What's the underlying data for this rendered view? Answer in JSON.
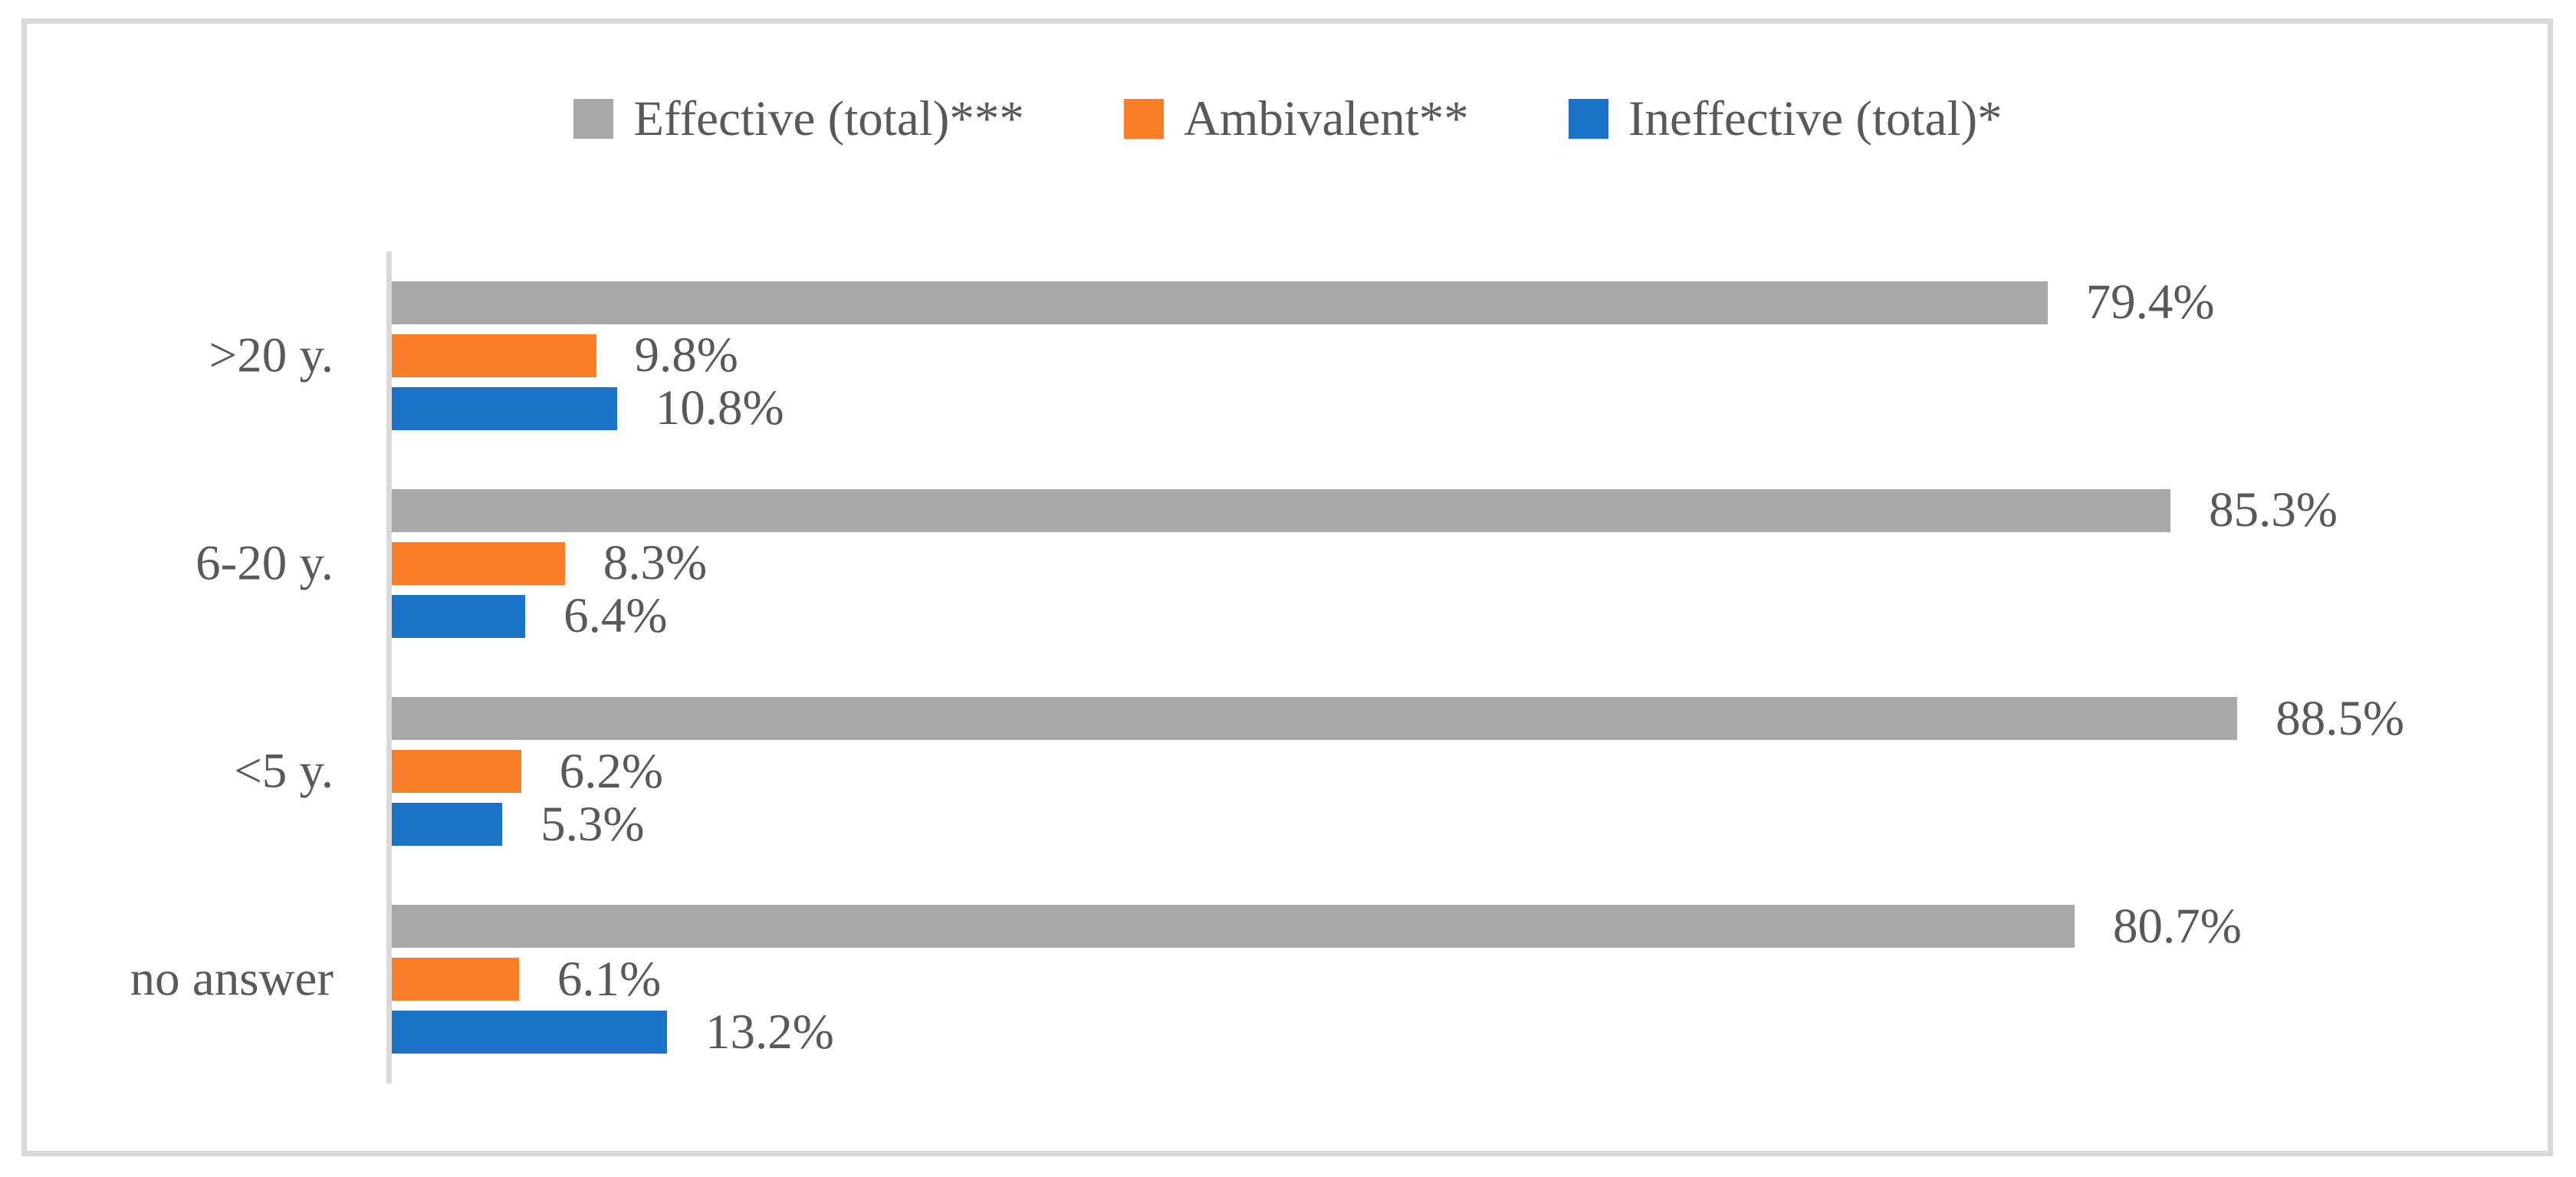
{
  "figure": {
    "background_color": "#FFFFFF",
    "border_color": "#D9D9D9",
    "text_color": "#595959",
    "axis_line_color": "#D9D9D9"
  },
  "chart_data": {
    "type": "bar",
    "orientation": "horizontal",
    "title": "",
    "xlabel": "",
    "ylabel": "",
    "xlim": [
      0,
      100
    ],
    "gridlines": false,
    "legend_position": "top",
    "data_labels_position": "outside-end",
    "categories": [
      ">20 y.",
      "6-20 y.",
      "<5 y.",
      "no answer"
    ],
    "series": [
      {
        "name": "Effective (total)***",
        "color": "#A8A8A8",
        "values": [
          79.4,
          85.3,
          88.5,
          80.7
        ],
        "labels": [
          "79.4%",
          "85.3%",
          "88.5%",
          "80.7%"
        ]
      },
      {
        "name": "Ambivalent**",
        "color": "#F97E27",
        "values": [
          9.8,
          8.3,
          6.2,
          6.1
        ],
        "labels": [
          "9.8%",
          "8.3%",
          "6.2%",
          "6.1%"
        ]
      },
      {
        "name": "Ineffective (total)*",
        "color": "#1B74C8",
        "values": [
          10.8,
          6.4,
          5.3,
          13.2
        ],
        "labels": [
          "10.8%",
          "6.4%",
          "5.3%",
          "13.2%"
        ]
      }
    ]
  }
}
